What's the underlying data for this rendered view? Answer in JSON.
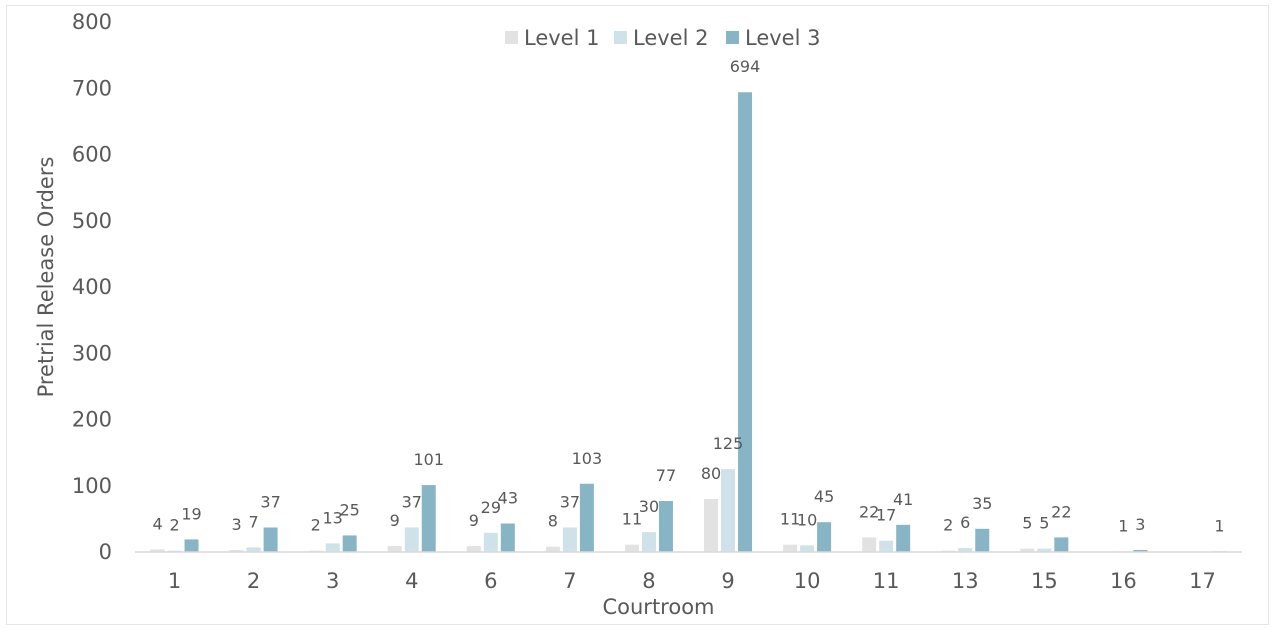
{
  "chart_data": {
    "type": "bar",
    "title": "",
    "xlabel": "Courtroom",
    "ylabel": "Pretrial Release Orders",
    "ylim": [
      0,
      800
    ],
    "yticks": [
      0,
      100,
      200,
      300,
      400,
      500,
      600,
      700,
      800
    ],
    "grid": false,
    "legend_position": "top-center",
    "categories": [
      "1",
      "2",
      "3",
      "4",
      "6",
      "7",
      "8",
      "9",
      "10",
      "11",
      "13",
      "15",
      "16",
      "17"
    ],
    "series": [
      {
        "name": "Level 1",
        "color": "#e2e2e2",
        "values": [
          4,
          3,
          2,
          9,
          9,
          8,
          11,
          80,
          11,
          22,
          2,
          5,
          null,
          null
        ]
      },
      {
        "name": "Level 2",
        "color": "#cfe1e9",
        "values": [
          2,
          7,
          13,
          37,
          29,
          37,
          30,
          125,
          10,
          17,
          6,
          5,
          1,
          null
        ]
      },
      {
        "name": "Level 3",
        "color": "#88b5c6",
        "values": [
          19,
          37,
          25,
          101,
          43,
          103,
          77,
          694,
          45,
          41,
          35,
          22,
          3,
          1
        ]
      }
    ]
  }
}
